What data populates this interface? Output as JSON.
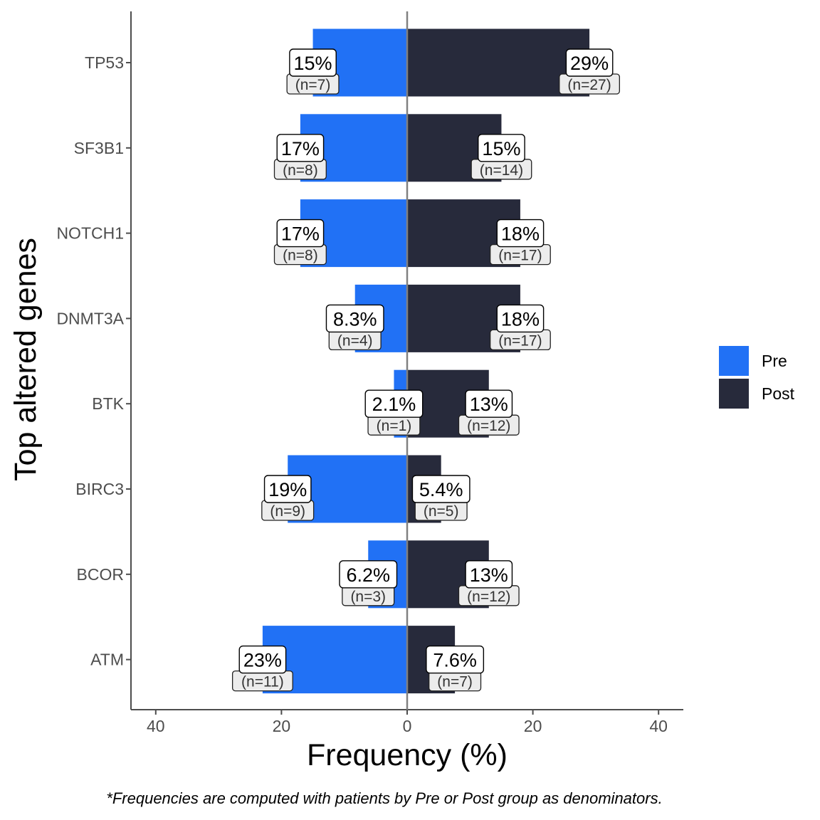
{
  "chart_data": {
    "type": "bar",
    "orientation": "horizontal-diverging",
    "categories": [
      "TP53",
      "SF3B1",
      "NOTCH1",
      "DNMT3A",
      "BTK",
      "BIRC3",
      "BCOR",
      "ATM"
    ],
    "series": [
      {
        "name": "Pre",
        "color": "#2171F5",
        "direction": "left",
        "values": [
          15,
          17,
          17,
          8.3,
          2.1,
          19,
          6.2,
          23
        ],
        "labels": [
          "15%",
          "17%",
          "17%",
          "8.3%",
          "2.1%",
          "19%",
          "6.2%",
          "23%"
        ],
        "counts": [
          "(n=7)",
          "(n=8)",
          "(n=8)",
          "(n=4)",
          "(n=1)",
          "(n=9)",
          "(n=3)",
          "(n=11)"
        ]
      },
      {
        "name": "Post",
        "color": "#272A3B",
        "direction": "right",
        "values": [
          29,
          15,
          18,
          18,
          13,
          5.4,
          13,
          7.6
        ],
        "labels": [
          "29%",
          "15%",
          "18%",
          "18%",
          "13%",
          "5.4%",
          "13%",
          "7.6%"
        ],
        "counts": [
          "(n=27)",
          "(n=14)",
          "(n=17)",
          "(n=17)",
          "(n=12)",
          "(n=5)",
          "(n=12)",
          "(n=7)"
        ]
      }
    ],
    "xlabel": "Frequency (%)",
    "ylabel": "Top altered genes",
    "xlim": [
      -44,
      44
    ],
    "x_ticks": [
      -40,
      -20,
      0,
      20,
      40
    ],
    "x_tick_labels": [
      "40",
      "20",
      "0",
      "20",
      "40"
    ],
    "grid": false,
    "legend_position": "right",
    "caption": "*Frequencies are computed with patients by Pre or Post group as denominators."
  }
}
